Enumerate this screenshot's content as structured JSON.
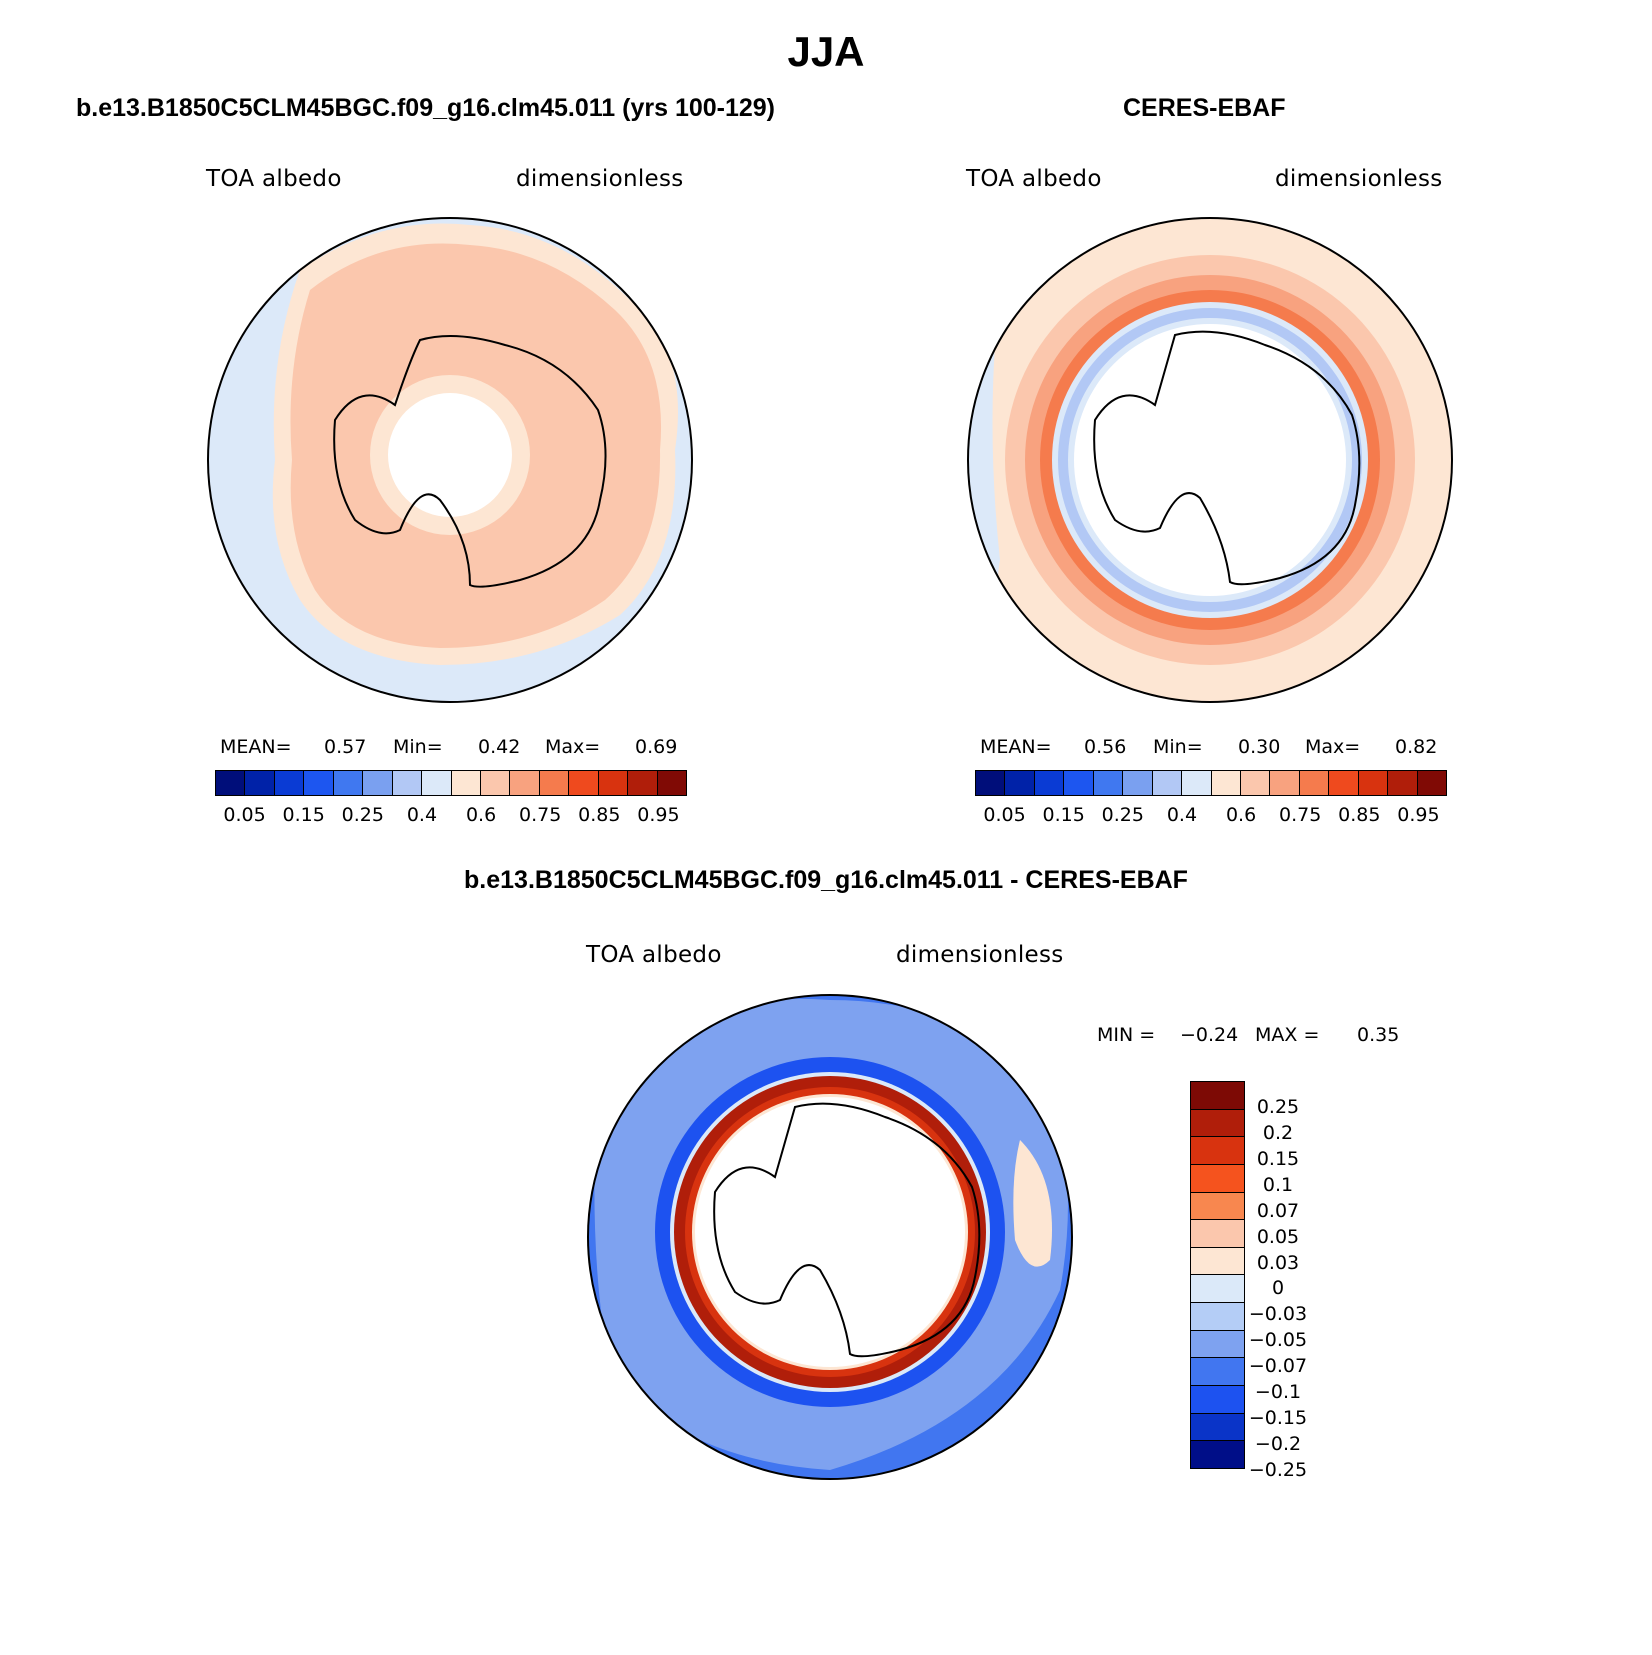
{
  "figure_title": "JJA",
  "panel_left": {
    "title": "b.e13.B1850C5CLM45BGC.f09_g16.clm45.011 (yrs 100-129)",
    "variable": "TOA albedo",
    "units": "dimensionless",
    "mean_label": "MEAN=",
    "mean": "0.57",
    "min_label": "Min=",
    "min": "0.42",
    "max_label": "Max=",
    "max": "0.69"
  },
  "panel_right": {
    "title": "CERES-EBAF",
    "variable": "TOA albedo",
    "units": "dimensionless",
    "mean_label": "MEAN=",
    "mean": "0.56",
    "min_label": "Min=",
    "min": "0.30",
    "max_label": "Max=",
    "max": "0.82"
  },
  "panel_diff": {
    "title": "b.e13.B1850C5CLM45BGC.f09_g16.clm45.011 - CERES-EBAF",
    "variable": "TOA albedo",
    "units": "dimensionless",
    "min_label": "MIN =",
    "min": "−0.24",
    "max_label": "MAX =",
    "max": "0.35"
  },
  "colorbar_abs": {
    "colors": [
      "#000e7a",
      "#0022a8",
      "#0a3bd4",
      "#1d56f0",
      "#4078f0",
      "#7aa0f0",
      "#b2c8f5",
      "#dce9f9",
      "#fde6d3",
      "#fbc7ad",
      "#f8a27f",
      "#f57b4d",
      "#ef4a1e",
      "#d8330f",
      "#b01e0a",
      "#800a05"
    ],
    "tick_labels": [
      "0.05",
      "0.15",
      "0.25",
      "0.4",
      "0.6",
      "0.75",
      "0.85",
      "0.95"
    ]
  },
  "colorbar_diff": {
    "colors": [
      "#7d0a05",
      "#b01e0a",
      "#d8330f",
      "#f5531e",
      "#f8874f",
      "#fbc7ad",
      "#fde6d3",
      "#dbe9f9",
      "#b4cdf6",
      "#7ea2f0",
      "#4176f0",
      "#1d52f0",
      "#0a34c8",
      "#000e88"
    ],
    "tick_labels": [
      "0.25",
      "0.2",
      "0.15",
      "0.1",
      "0.07",
      "0.05",
      "0.03",
      "0",
      "−0.03",
      "−0.05",
      "−0.07",
      "−0.1",
      "−0.15",
      "−0.2",
      "−0.25"
    ]
  },
  "chart_data": [
    {
      "type": "heatmap",
      "title": "b.e13.B1850C5CLM45BGC.f09_g16.clm45.011 (yrs 100-129)",
      "projection": "south polar stereographic",
      "variable": "TOA albedo",
      "units": "dimensionless",
      "mean": 0.57,
      "min": 0.42,
      "max": 0.69,
      "levels": [
        0.05,
        0.1,
        0.15,
        0.2,
        0.25,
        0.3,
        0.4,
        0.5,
        0.6,
        0.7,
        0.75,
        0.8,
        0.85,
        0.9,
        0.95
      ]
    },
    {
      "type": "heatmap",
      "title": "CERES-EBAF",
      "projection": "south polar stereographic",
      "variable": "TOA albedo",
      "units": "dimensionless",
      "mean": 0.56,
      "min": 0.3,
      "max": 0.82,
      "levels": [
        0.05,
        0.1,
        0.15,
        0.2,
        0.25,
        0.3,
        0.4,
        0.5,
        0.6,
        0.7,
        0.75,
        0.8,
        0.85,
        0.9,
        0.95
      ]
    },
    {
      "type": "heatmap",
      "title": "b.e13.B1850C5CLM45BGC.f09_g16.clm45.011 - CERES-EBAF",
      "projection": "south polar stereographic",
      "variable": "TOA albedo",
      "units": "dimensionless",
      "min": -0.24,
      "max": 0.35,
      "levels": [
        -0.25,
        -0.2,
        -0.15,
        -0.1,
        -0.07,
        -0.05,
        -0.03,
        0,
        0.03,
        0.05,
        0.07,
        0.1,
        0.15,
        0.2,
        0.25
      ]
    }
  ]
}
